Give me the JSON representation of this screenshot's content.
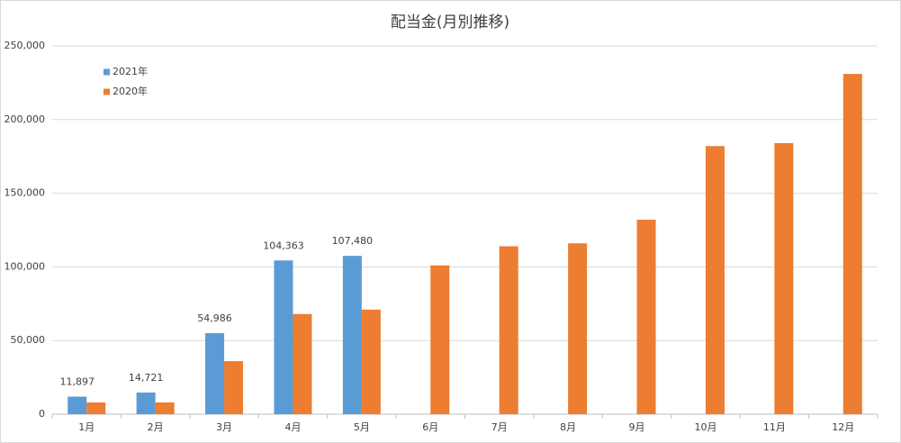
{
  "chart_data": {
    "type": "bar",
    "title": "配当金(月別推移)",
    "categories": [
      "1月",
      "2月",
      "3月",
      "4月",
      "5月",
      "6月",
      "7月",
      "8月",
      "9月",
      "10月",
      "11月",
      "12月"
    ],
    "series": [
      {
        "name": "2021年",
        "color": "#5b9bd5",
        "values": [
          11897,
          14721,
          54986,
          104363,
          107480,
          null,
          null,
          null,
          null,
          null,
          null,
          null
        ],
        "value_labels": [
          "11,897",
          "14,721",
          "54,986",
          "104,363",
          "107,480",
          null,
          null,
          null,
          null,
          null,
          null,
          null
        ]
      },
      {
        "name": "2020年",
        "color": "#ed7d31",
        "values": [
          8000,
          8000,
          36000,
          68000,
          71000,
          101000,
          114000,
          116000,
          132000,
          182000,
          184000,
          231000
        ]
      }
    ],
    "ylim": [
      0,
      250000
    ],
    "yticks": [
      0,
      {
        "value": 50000,
        "label": "50,000"
      },
      {
        "value": 100000,
        "label": "100,000"
      },
      {
        "value": 150000,
        "label": "150,000"
      },
      {
        "value": 200000,
        "label": "200,000"
      },
      {
        "value": 250000,
        "label": "250,000"
      }
    ],
    "grid": true,
    "legend": "upper-left"
  }
}
